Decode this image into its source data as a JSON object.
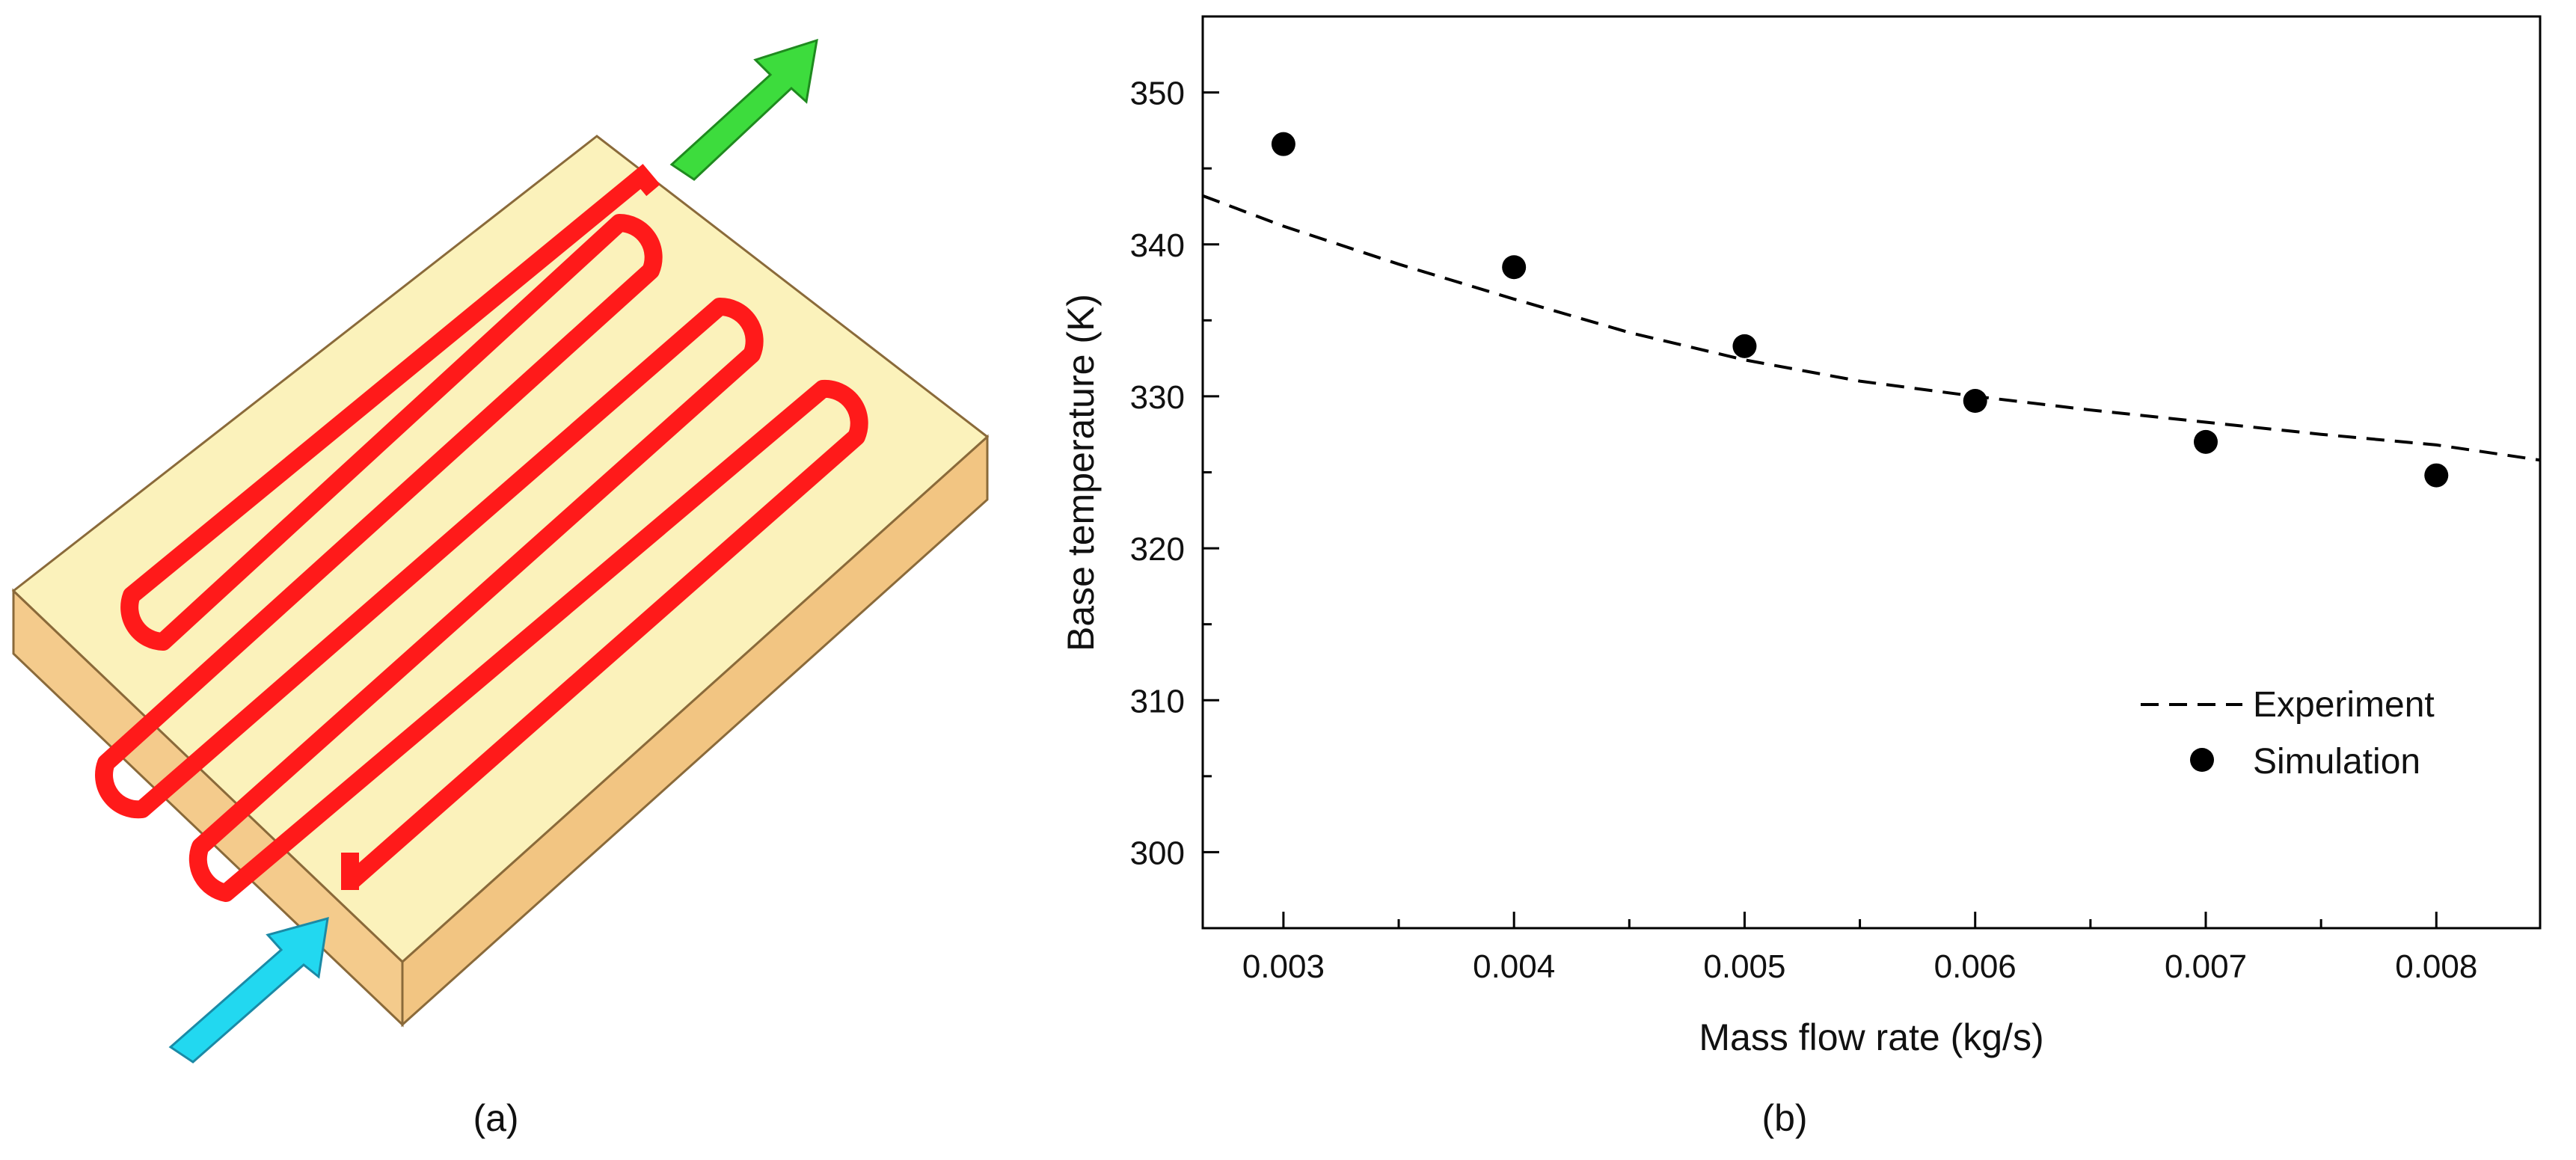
{
  "panels": {
    "a": {
      "caption": "(a)",
      "inlet_arrow_color": "#22d8f0",
      "outlet_arrow_color": "#3ddc3d",
      "plate_top_color": "#fbf2bb",
      "plate_side_color": "#f4cb8c",
      "channel_color": "#ff1a1a"
    },
    "b": {
      "caption": "(b)"
    }
  },
  "chart_data": {
    "type": "scatter",
    "title": "",
    "xlabel": "Mass flow rate (kg/s)",
    "ylabel": "Base temperature (K)",
    "xlim": [
      0.00265,
      0.00845
    ],
    "ylim": [
      295,
      355
    ],
    "xticks": [
      0.003,
      0.004,
      0.005,
      0.006,
      0.007,
      0.008
    ],
    "xtick_labels": [
      "0.003",
      "0.004",
      "0.005",
      "0.006",
      "0.007",
      "0.008"
    ],
    "yticks": [
      300,
      310,
      320,
      330,
      340,
      350
    ],
    "ytick_labels": [
      "300",
      "310",
      "320",
      "330",
      "340",
      "350"
    ],
    "grid": false,
    "legend_position": "lower-right",
    "series": [
      {
        "name": "Experiment",
        "style": "dashed-line",
        "color": "#000000",
        "x": [
          0.00265,
          0.003,
          0.0035,
          0.004,
          0.0045,
          0.005,
          0.0055,
          0.006,
          0.0065,
          0.007,
          0.0075,
          0.008,
          0.00845
        ],
        "y": [
          343.2,
          341.2,
          338.7,
          336.4,
          334.2,
          332.4,
          331.0,
          330.0,
          329.1,
          328.3,
          327.5,
          326.8,
          325.8
        ]
      },
      {
        "name": "Simulation",
        "style": "markers",
        "color": "#000000",
        "x": [
          0.003,
          0.004,
          0.005,
          0.006,
          0.007,
          0.008
        ],
        "y": [
          346.6,
          338.5,
          333.3,
          329.7,
          327.0,
          324.8
        ]
      }
    ]
  }
}
